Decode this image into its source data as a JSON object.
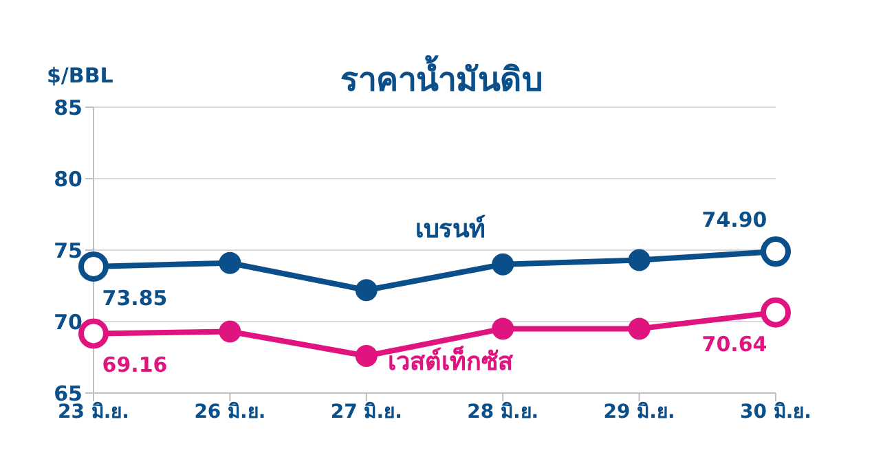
{
  "chart_data": {
    "type": "line",
    "title": "ราคาน้ำมันดิบ",
    "ylabel": "$/BBL",
    "categories": [
      "23 มิ.ย.",
      "26 มิ.ย.",
      "27 มิ.ย.",
      "28 มิ.ย.",
      "29 มิ.ย.",
      "30 มิ.ย."
    ],
    "series": [
      {
        "name": "เบรนท์",
        "color": "#0b4f8a",
        "values": [
          73.85,
          74.1,
          72.2,
          74.0,
          74.3,
          74.9
        ],
        "value_labels": [
          "73.85",
          null,
          null,
          null,
          null,
          "74.90"
        ]
      },
      {
        "name": "เวสต์เท็กซัส",
        "color": "#e0147f",
        "values": [
          69.16,
          69.3,
          67.6,
          69.5,
          69.5,
          70.64
        ],
        "value_labels": [
          "69.16",
          null,
          null,
          null,
          null,
          "70.64"
        ]
      }
    ],
    "ylim": [
      65,
      85
    ],
    "yticks": [
      65,
      70,
      75,
      80,
      85
    ],
    "grid": "y",
    "marker": "circle",
    "line_style": "solid"
  }
}
